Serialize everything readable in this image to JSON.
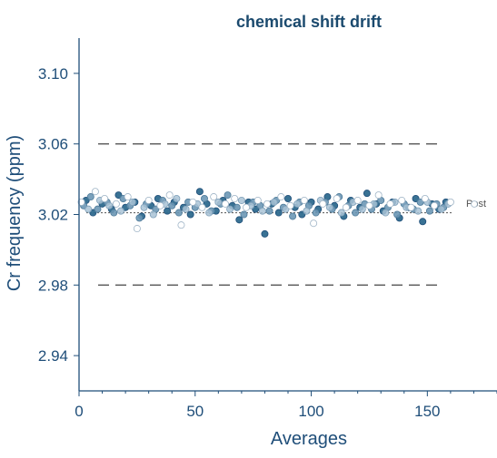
{
  "colors": {
    "axis": "#1f4e79",
    "text": "#1f4e79",
    "title": "#1b4a6e",
    "dark_fill": "#2e6a8e",
    "mid_fill": "#6b97b5",
    "light_fill": "#a9c3d6",
    "hollow_stroke": "#9fb4c6",
    "reference": "#555555",
    "mean": "#666666"
  },
  "chart_data": {
    "type": "scatter",
    "title": "chemical shift drift",
    "xlabel": "Averages",
    "ylabel": "Cr frequency (ppm)",
    "xlim": [
      0,
      180
    ],
    "ylim": [
      2.92,
      3.12
    ],
    "xticks": [
      0,
      50,
      100,
      150
    ],
    "yticks": [
      2.94,
      2.98,
      3.02,
      3.06,
      3.1
    ],
    "ytick_labels": [
      "2.94",
      "2.98",
      "3.02",
      "3.06",
      "3.10"
    ],
    "grid": false,
    "reference_lines": [
      3.06,
      2.98
    ],
    "mean_line": 3.021,
    "legend": {
      "label": "Post",
      "placement": "right"
    },
    "series": [
      {
        "style": "filled-dark",
        "points": [
          [
            3,
            3.028
          ],
          [
            6,
            3.021
          ],
          [
            10,
            3.026
          ],
          [
            14,
            3.023
          ],
          [
            17,
            3.031
          ],
          [
            20,
            3.024
          ],
          [
            24,
            3.027
          ],
          [
            27,
            3.019
          ],
          [
            31,
            3.025
          ],
          [
            34,
            3.029
          ],
          [
            38,
            3.022
          ],
          [
            41,
            3.027
          ],
          [
            45,
            3.024
          ],
          [
            48,
            3.02
          ],
          [
            52,
            3.033
          ],
          [
            55,
            3.026
          ],
          [
            59,
            3.022
          ],
          [
            62,
            3.028
          ],
          [
            66,
            3.025
          ],
          [
            69,
            3.017
          ],
          [
            73,
            3.027
          ],
          [
            76,
            3.023
          ],
          [
            80,
            3.009
          ],
          [
            83,
            3.026
          ],
          [
            86,
            3.021
          ],
          [
            90,
            3.029
          ],
          [
            93,
            3.024
          ],
          [
            96,
            3.02
          ],
          [
            100,
            3.027
          ],
          [
            103,
            3.023
          ],
          [
            107,
            3.03
          ],
          [
            110,
            3.025
          ],
          [
            114,
            3.019
          ],
          [
            117,
            3.028
          ],
          [
            121,
            3.024
          ],
          [
            124,
            3.032
          ],
          [
            128,
            3.026
          ],
          [
            131,
            3.022
          ],
          [
            135,
            3.027
          ],
          [
            138,
            3.018
          ],
          [
            142,
            3.024
          ],
          [
            145,
            3.029
          ],
          [
            148,
            3.016
          ],
          [
            152,
            3.026
          ],
          [
            155,
            3.023
          ],
          [
            158,
            3.027
          ]
        ]
      },
      {
        "style": "filled-mid",
        "points": [
          [
            2,
            3.025
          ],
          [
            5,
            3.03
          ],
          [
            8,
            3.023
          ],
          [
            12,
            3.027
          ],
          [
            15,
            3.021
          ],
          [
            19,
            3.029
          ],
          [
            22,
            3.025
          ],
          [
            26,
            3.018
          ],
          [
            29,
            3.026
          ],
          [
            33,
            3.023
          ],
          [
            36,
            3.028
          ],
          [
            40,
            3.025
          ],
          [
            43,
            3.021
          ],
          [
            47,
            3.027
          ],
          [
            50,
            3.024
          ],
          [
            54,
            3.029
          ],
          [
            57,
            3.022
          ],
          [
            61,
            3.026
          ],
          [
            64,
            3.031
          ],
          [
            68,
            3.024
          ],
          [
            71,
            3.02
          ],
          [
            75,
            3.027
          ],
          [
            78,
            3.025
          ],
          [
            82,
            3.022
          ],
          [
            85,
            3.028
          ],
          [
            88,
            3.024
          ],
          [
            92,
            3.019
          ],
          [
            95,
            3.027
          ],
          [
            99,
            3.025
          ],
          [
            102,
            3.021
          ],
          [
            106,
            3.027
          ],
          [
            109,
            3.023
          ],
          [
            112,
            3.03
          ],
          [
            116,
            3.025
          ],
          [
            119,
            3.021
          ],
          [
            123,
            3.026
          ],
          [
            126,
            3.023
          ],
          [
            130,
            3.028
          ],
          [
            133,
            3.024
          ],
          [
            137,
            3.02
          ],
          [
            140,
            3.026
          ],
          [
            144,
            3.023
          ],
          [
            147,
            3.027
          ],
          [
            151,
            3.022
          ],
          [
            154,
            3.026
          ],
          [
            157,
            3.024
          ]
        ]
      },
      {
        "style": "filled-light",
        "points": [
          [
            4,
            3.023
          ],
          [
            9,
            3.028
          ],
          [
            13,
            3.025
          ],
          [
            18,
            3.022
          ],
          [
            23,
            3.027
          ],
          [
            28,
            3.024
          ],
          [
            32,
            3.02
          ],
          [
            37,
            3.026
          ],
          [
            42,
            3.029
          ],
          [
            46,
            3.023
          ],
          [
            51,
            3.026
          ],
          [
            56,
            3.021
          ],
          [
            60,
            3.027
          ],
          [
            65,
            3.023
          ],
          [
            70,
            3.028
          ],
          [
            74,
            3.025
          ],
          [
            79,
            3.022
          ],
          [
            84,
            3.027
          ],
          [
            89,
            3.023
          ],
          [
            94,
            3.026
          ],
          [
            98,
            3.022
          ],
          [
            104,
            3.028
          ],
          [
            108,
            3.024
          ],
          [
            113,
            3.021
          ],
          [
            118,
            3.027
          ],
          [
            122,
            3.023
          ],
          [
            127,
            3.026
          ],
          [
            132,
            3.021
          ],
          [
            136,
            3.027
          ],
          [
            141,
            3.024
          ],
          [
            146,
            3.022
          ],
          [
            150,
            3.027
          ],
          [
            156,
            3.023
          ],
          [
            159,
            3.026
          ]
        ]
      },
      {
        "style": "hollow",
        "points": [
          [
            1,
            3.027
          ],
          [
            7,
            3.033
          ],
          [
            11,
            3.029
          ],
          [
            16,
            3.026
          ],
          [
            21,
            3.03
          ],
          [
            25,
            3.012
          ],
          [
            30,
            3.028
          ],
          [
            35,
            3.025
          ],
          [
            39,
            3.031
          ],
          [
            44,
            3.014
          ],
          [
            49,
            3.027
          ],
          [
            53,
            3.024
          ],
          [
            58,
            3.03
          ],
          [
            63,
            3.026
          ],
          [
            67,
            3.029
          ],
          [
            72,
            3.024
          ],
          [
            77,
            3.028
          ],
          [
            81,
            3.026
          ],
          [
            87,
            3.03
          ],
          [
            91,
            3.025
          ],
          [
            97,
            3.028
          ],
          [
            101,
            3.015
          ],
          [
            105,
            3.026
          ],
          [
            111,
            3.029
          ],
          [
            115,
            3.024
          ],
          [
            120,
            3.028
          ],
          [
            125,
            3.025
          ],
          [
            129,
            3.031
          ],
          [
            134,
            3.026
          ],
          [
            139,
            3.028
          ],
          [
            143,
            3.024
          ],
          [
            149,
            3.029
          ],
          [
            153,
            3.025
          ],
          [
            160,
            3.027
          ]
        ]
      }
    ]
  }
}
